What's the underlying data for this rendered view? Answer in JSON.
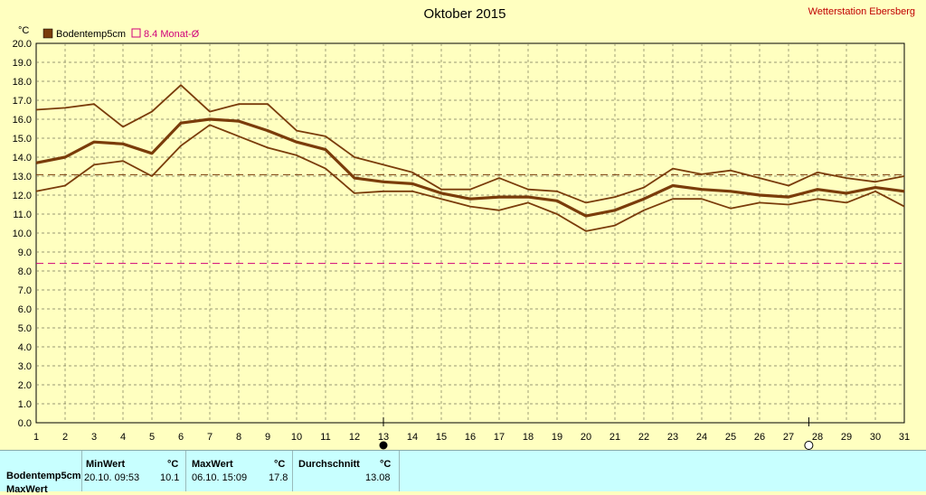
{
  "chart_data": {
    "type": "line",
    "title": "Oktober 2015",
    "station": "Wetterstation Ebersberg",
    "ylabel": "°C",
    "ylim": [
      0,
      20
    ],
    "ytick_step": 1,
    "x": [
      1,
      2,
      3,
      4,
      5,
      6,
      7,
      8,
      9,
      10,
      11,
      12,
      13,
      14,
      15,
      16,
      17,
      18,
      19,
      20,
      21,
      22,
      23,
      24,
      25,
      26,
      27,
      28,
      29,
      30,
      31
    ],
    "grid": true,
    "legend": [
      {
        "label": "Bodentemp5cm",
        "color": "#7a3c0a",
        "marker": "filled-square"
      },
      {
        "label": "8.4 Monat-Ø",
        "color": "#d0007a",
        "marker": "open-square"
      }
    ],
    "series": [
      {
        "name": "Bodentemp5cm",
        "role": "mean",
        "color": "#7a3c0a",
        "values": [
          13.7,
          14.0,
          14.8,
          14.7,
          14.2,
          15.8,
          16.0,
          15.9,
          15.4,
          14.8,
          14.4,
          12.9,
          12.7,
          12.6,
          12.1,
          11.8,
          11.9,
          11.9,
          11.7,
          10.9,
          11.2,
          11.8,
          12.5,
          12.3,
          12.2,
          12.0,
          11.9,
          12.3,
          12.1,
          12.4,
          12.2
        ]
      },
      {
        "role": "max",
        "color": "#7a3c0a",
        "values": [
          16.5,
          16.6,
          16.8,
          15.6,
          16.4,
          17.8,
          16.4,
          16.8,
          16.8,
          15.4,
          15.1,
          14.0,
          13.6,
          13.2,
          12.3,
          12.3,
          12.9,
          12.3,
          12.2,
          11.6,
          11.9,
          12.4,
          13.4,
          13.1,
          13.3,
          12.9,
          12.5,
          13.2,
          12.9,
          12.7,
          13.0
        ]
      },
      {
        "role": "min",
        "color": "#7a3c0a",
        "values": [
          12.2,
          12.5,
          13.6,
          13.8,
          13.0,
          14.6,
          15.7,
          15.1,
          14.5,
          14.1,
          13.4,
          12.1,
          12.2,
          12.2,
          11.8,
          11.4,
          11.2,
          11.6,
          11.0,
          10.1,
          10.4,
          11.2,
          11.8,
          11.8,
          11.3,
          11.6,
          11.5,
          11.8,
          11.6,
          12.2,
          11.4
        ]
      }
    ],
    "reference_lines": [
      {
        "label": "Durchschnitt",
        "value": 13.08,
        "color": "#7a3c0a",
        "style": "dashed"
      },
      {
        "label": "8.4 Monat-Ø",
        "value": 8.4,
        "color": "#d0007a",
        "style": "dashed"
      }
    ],
    "moon_phases": [
      {
        "day": 13,
        "phase": "new"
      },
      {
        "day": 27.7,
        "phase": "full"
      }
    ]
  },
  "footer": {
    "headers": {
      "min": "MinWert",
      "min_unit": "°C",
      "max": "MaxWert",
      "max_unit": "°C",
      "avg": "Durchschnitt",
      "avg_unit": "°C"
    },
    "row_label": "Bodentemp5cm",
    "min_time": "20.10.  09:53",
    "min_value": "10.1",
    "max_time": "06.10.  15:09",
    "max_value": "17.8",
    "avg_value": "13.08",
    "second_row_label": "MaxWert"
  }
}
